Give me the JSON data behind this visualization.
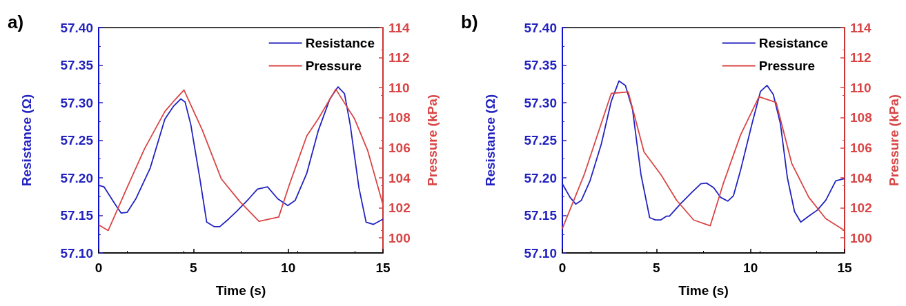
{
  "chart_data": [
    {
      "type": "line",
      "title": "a)",
      "xlabel": "Time (s)",
      "ylabel": "Resistance (Ω)",
      "y2label": "Pressure (kPa)",
      "xlim": [
        0,
        15
      ],
      "xticks": [
        0,
        5,
        10,
        15
      ],
      "ylim": [
        57.1,
        57.4
      ],
      "yticks": [
        {
          "value": 57.1,
          "label": "57.10"
        },
        57.15,
        {
          "value": 57.2,
          "label": "57.20"
        },
        57.25,
        {
          "value": 57.3,
          "label": "57.30"
        },
        57.35,
        {
          "value": 57.4,
          "label": "57.40"
        }
      ],
      "y2lim": [
        99,
        114
      ],
      "y2ticks": [
        100,
        102,
        104,
        106,
        108,
        110,
        112,
        114
      ],
      "legend": "top right",
      "grid": false,
      "marker": "none",
      "line_style": "solid",
      "series": [
        {
          "name": "Resistance",
          "color": "#2222c0",
          "axis": "y",
          "x": [
            0,
            0.28,
            0.89,
            1.19,
            1.5,
            1.96,
            2.72,
            3.49,
            3.94,
            4.33,
            4.56,
            4.86,
            5.32,
            5.7,
            6.09,
            6.39,
            6.85,
            7.31,
            7.92,
            8.38,
            8.91,
            9.45,
            9.98,
            10.37,
            10.98,
            11.59,
            12.2,
            12.63,
            12.97,
            13.27,
            13.73,
            14.11,
            14.5,
            15
          ],
          "values": [
            57.19,
            57.188,
            57.164,
            57.153,
            57.154,
            57.172,
            57.213,
            57.278,
            57.295,
            57.305,
            57.301,
            57.271,
            57.202,
            57.141,
            57.135,
            57.135,
            57.145,
            57.156,
            57.172,
            57.185,
            57.188,
            57.172,
            57.163,
            57.17,
            57.206,
            57.263,
            57.305,
            57.321,
            57.312,
            57.271,
            57.187,
            57.141,
            57.138,
            57.145
          ]
        },
        {
          "name": "Pressure",
          "color": "#d94545",
          "axis": "y2",
          "x": [
            0,
            0.5,
            1.5,
            2.42,
            3.49,
            3.94,
            4.5,
            5.47,
            6.47,
            7.46,
            8.46,
            9.5,
            10.06,
            10.98,
            11.59,
            12.51,
            13.5,
            14.19,
            15
          ],
          "values": [
            100.87,
            100.49,
            103.35,
            105.93,
            108.41,
            109.07,
            109.84,
            107.17,
            103.93,
            102.4,
            101.1,
            101.39,
            103.54,
            106.79,
            107.93,
            109.9,
            107.93,
            105.83,
            102.21
          ]
        }
      ]
    },
    {
      "type": "line",
      "title": "b)",
      "xlabel": "Time (s)",
      "ylabel": "Resistance (Ω)",
      "y2label": "Pressure (kPa)",
      "xlim": [
        0,
        15
      ],
      "xticks": [
        0,
        5,
        10,
        15
      ],
      "ylim": [
        57.1,
        57.4
      ],
      "yticks": [
        {
          "value": 57.1,
          "label": "57.10"
        },
        57.15,
        {
          "value": 57.2,
          "label": "57.20"
        },
        57.25,
        {
          "value": 57.3,
          "label": "57.30"
        },
        57.35,
        {
          "value": 57.4,
          "label": "57.40"
        }
      ],
      "y2lim": [
        99,
        114
      ],
      "y2ticks": [
        100,
        102,
        104,
        106,
        108,
        110,
        112,
        114
      ],
      "legend": "top right",
      "grid": false,
      "marker": "none",
      "line_style": "solid",
      "series": [
        {
          "name": "Resistance",
          "color": "#2222c0",
          "axis": "y",
          "x": [
            0,
            0.41,
            0.71,
            1.01,
            1.47,
            2.07,
            2.6,
            3.01,
            3.35,
            3.73,
            4.18,
            4.64,
            4.94,
            5.24,
            5.54,
            5.69,
            6.3,
            6.9,
            7.36,
            7.66,
            8.04,
            8.41,
            8.79,
            9.09,
            9.47,
            10.08,
            10.53,
            10.88,
            11.21,
            11.59,
            11.96,
            12.34,
            12.67,
            13.1,
            13.55,
            14,
            14.53,
            15
          ],
          "values": [
            57.192,
            57.174,
            57.165,
            57.17,
            57.196,
            57.245,
            57.302,
            57.329,
            57.323,
            57.291,
            57.204,
            57.147,
            57.144,
            57.144,
            57.149,
            57.149,
            57.166,
            57.181,
            57.192,
            57.193,
            57.187,
            57.174,
            57.169,
            57.176,
            57.21,
            57.272,
            57.315,
            57.323,
            57.311,
            57.272,
            57.2,
            57.155,
            57.141,
            57.149,
            57.157,
            57.17,
            57.196,
            57.199
          ]
        },
        {
          "name": "Pressure",
          "color": "#d94545",
          "axis": "y2",
          "x": [
            0,
            1.16,
            2.6,
            3.5,
            4.34,
            5.24,
            6.07,
            6.98,
            7.86,
            8.56,
            9.47,
            10.45,
            11.36,
            12.19,
            13.1,
            14,
            15
          ],
          "values": [
            100.62,
            104.21,
            109.62,
            109.72,
            105.72,
            104.21,
            102.51,
            101.19,
            100.81,
            103.64,
            106.85,
            109.4,
            109.02,
            104.96,
            102.7,
            101.28,
            100.49
          ]
        }
      ]
    }
  ]
}
